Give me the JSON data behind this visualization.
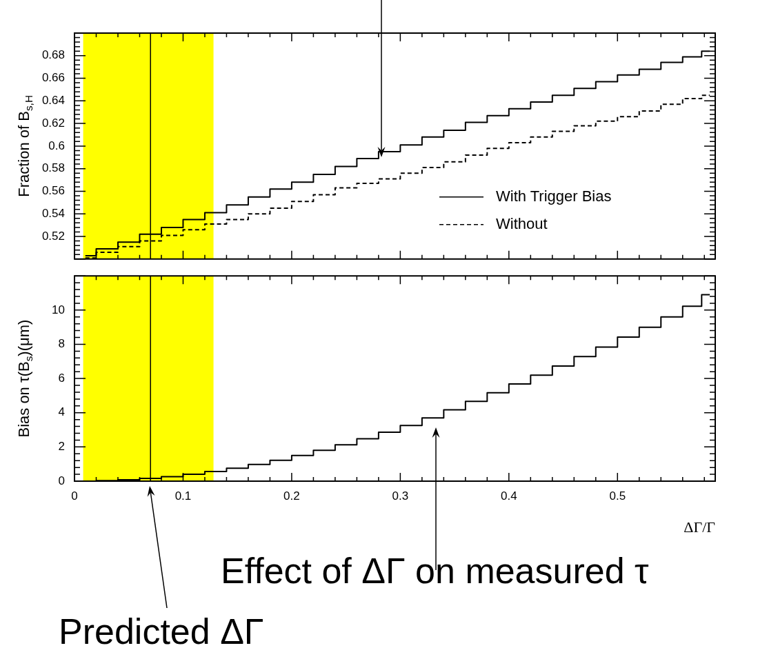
{
  "chart_data": [
    {
      "type": "step",
      "ylabel": "Fraction of B$_{s,H}$",
      "x": [
        0.01,
        0.03,
        0.05,
        0.07,
        0.09,
        0.11,
        0.13,
        0.15,
        0.17,
        0.19,
        0.21,
        0.23,
        0.25,
        0.27,
        0.29,
        0.31,
        0.33,
        0.35,
        0.37,
        0.39,
        0.41,
        0.43,
        0.45,
        0.47,
        0.49,
        0.51,
        0.53,
        0.55,
        0.57,
        0.585
      ],
      "series": [
        {
          "name": "With Trigger Bias",
          "color": "#000000",
          "line_style": "solid",
          "values": [
            0.503,
            0.509,
            0.515,
            0.522,
            0.528,
            0.535,
            0.541,
            0.548,
            0.555,
            0.562,
            0.568,
            0.575,
            0.582,
            0.589,
            0.595,
            0.601,
            0.608,
            0.614,
            0.621,
            0.627,
            0.633,
            0.639,
            0.645,
            0.651,
            0.657,
            0.663,
            0.668,
            0.674,
            0.679,
            0.684
          ]
        },
        {
          "name": "Without",
          "color": "#000000",
          "line_style": "dashed",
          "values": [
            0.501,
            0.506,
            0.511,
            0.516,
            0.521,
            0.526,
            0.531,
            0.535,
            0.54,
            0.545,
            0.551,
            0.557,
            0.563,
            0.567,
            0.571,
            0.576,
            0.581,
            0.586,
            0.592,
            0.598,
            0.603,
            0.608,
            0.613,
            0.618,
            0.622,
            0.626,
            0.631,
            0.637,
            0.642,
            0.645
          ]
        }
      ],
      "xlim": [
        0,
        0.59
      ],
      "xticks": [
        0,
        0.1,
        0.2,
        0.3,
        0.4,
        0.5
      ],
      "ylim": [
        0.5,
        0.7
      ],
      "yticks": [
        0.52,
        0.54,
        0.56,
        0.58,
        0.6,
        0.62,
        0.64,
        0.66,
        0.68
      ],
      "tick_labels": "y",
      "legend": "bottom right",
      "ref_lines": [
        {
          "axis": "x",
          "value": 0.07,
          "color": "#000000"
        }
      ],
      "bands": [
        {
          "axis": "x",
          "from": 0.008,
          "to": 0.128,
          "color": "#ffff00"
        }
      ]
    },
    {
      "type": "step",
      "xlabel": "ΔΓ/Γ",
      "ylabel": "Bias on τ(B$_{s}$)(μm)",
      "x": [
        0.01,
        0.03,
        0.05,
        0.07,
        0.09,
        0.11,
        0.13,
        0.15,
        0.17,
        0.19,
        0.21,
        0.23,
        0.25,
        0.27,
        0.29,
        0.31,
        0.33,
        0.35,
        0.37,
        0.39,
        0.41,
        0.43,
        0.45,
        0.47,
        0.49,
        0.51,
        0.53,
        0.55,
        0.57,
        0.585
      ],
      "series": [
        {
          "color": "#000000",
          "line_style": "solid",
          "values": [
            0.0,
            0.03,
            0.08,
            0.16,
            0.26,
            0.4,
            0.56,
            0.76,
            0.98,
            1.22,
            1.5,
            1.8,
            2.13,
            2.48,
            2.86,
            3.25,
            3.7,
            4.17,
            4.66,
            5.17,
            5.68,
            6.2,
            6.73,
            7.28,
            7.84,
            8.42,
            9.0,
            9.6,
            10.22,
            10.9
          ]
        }
      ],
      "xlim": [
        0,
        0.59
      ],
      "xticks": [
        0,
        0.1,
        0.2,
        0.3,
        0.4,
        0.5
      ],
      "ylim": [
        0,
        12
      ],
      "yticks": [
        0,
        2,
        4,
        6,
        8,
        10
      ],
      "ref_lines": [
        {
          "axis": "x",
          "value": 0.07,
          "color": "#000000"
        }
      ],
      "bands": [
        {
          "axis": "x",
          "from": 0.008,
          "to": 0.128,
          "color": "#ffff00"
        }
      ],
      "annotations": [
        "Effect of ΔΓ on measured τ",
        "Predicted ΔΓ"
      ]
    }
  ]
}
